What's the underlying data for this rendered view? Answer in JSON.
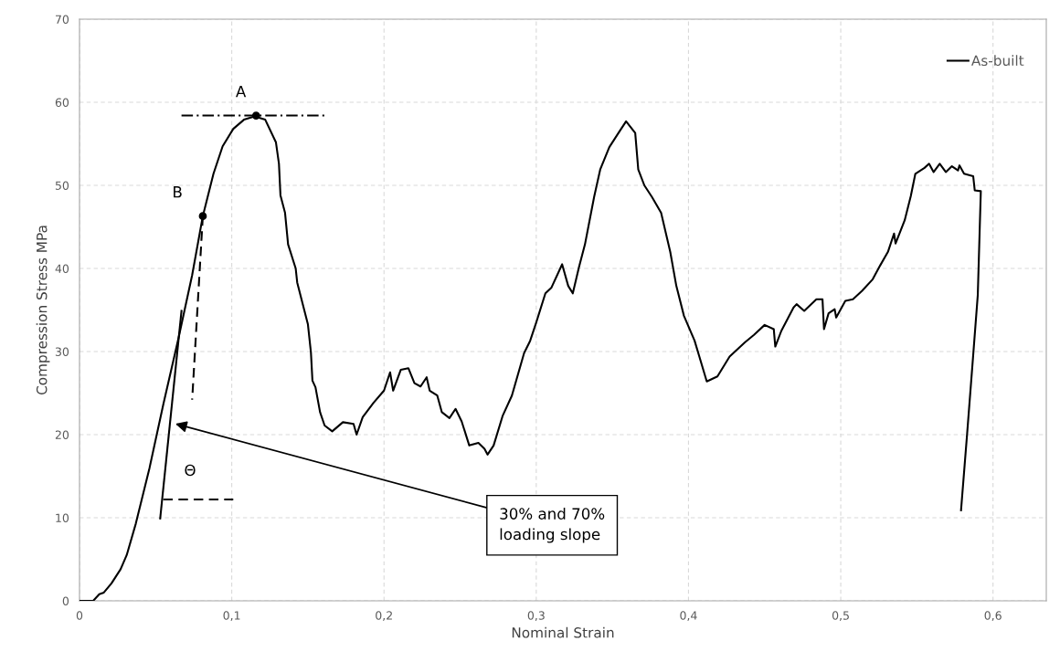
{
  "chart_data": {
    "type": "line",
    "xlabel": "Nominal Strain",
    "ylabel": "Compression Stress MPa",
    "xlim": [
      0,
      0.635
    ],
    "ylim": [
      0,
      70
    ],
    "xticks": [
      0,
      {
        "value": 0.1,
        "label": "0,1"
      },
      {
        "value": 0.2,
        "label": "0,2"
      },
      {
        "value": 0.3,
        "label": "0,3"
      },
      {
        "value": 0.4,
        "label": "0,4"
      },
      {
        "value": 0.5,
        "label": "0,5"
      },
      {
        "value": 0.6,
        "label": "0,6"
      }
    ],
    "yticks": [
      0,
      10,
      20,
      30,
      40,
      50,
      60,
      70
    ],
    "grid": true,
    "legend": "top right",
    "marker": "none",
    "line_style": "solid",
    "series": [
      {
        "name": "As-built",
        "color": "#000000",
        "x": [
          0.0,
          0.009,
          0.013,
          0.016,
          0.021,
          0.027,
          0.031,
          0.037,
          0.046,
          0.055,
          0.065,
          0.074,
          0.081,
          0.088,
          0.094,
          0.101,
          0.108,
          0.115,
          0.122,
          0.129,
          0.131,
          0.132,
          0.135,
          0.137,
          0.142,
          0.143,
          0.15,
          0.152,
          0.153,
          0.155,
          0.158,
          0.161,
          0.166,
          0.173,
          0.18,
          0.182,
          0.186,
          0.193,
          0.2,
          0.204,
          0.206,
          0.211,
          0.216,
          0.22,
          0.224,
          0.228,
          0.23,
          0.235,
          0.238,
          0.243,
          0.247,
          0.251,
          0.256,
          0.262,
          0.266,
          0.268,
          0.272,
          0.278,
          0.284,
          0.292,
          0.296,
          0.3,
          0.306,
          0.31,
          0.317,
          0.321,
          0.324,
          0.328,
          0.332,
          0.338,
          0.342,
          0.348,
          0.354,
          0.359,
          0.365,
          0.367,
          0.371,
          0.376,
          0.382,
          0.388,
          0.392,
          0.397,
          0.404,
          0.412,
          0.419,
          0.427,
          0.437,
          0.443,
          0.45,
          0.456,
          0.457,
          0.461,
          0.469,
          0.471,
          0.476,
          0.484,
          0.488,
          0.489,
          0.492,
          0.496,
          0.497,
          0.503,
          0.508,
          0.514,
          0.521,
          0.526,
          0.531,
          0.535,
          0.536,
          0.542,
          0.546,
          0.549,
          0.555,
          0.558,
          0.561,
          0.565,
          0.569,
          0.573,
          0.577,
          0.578,
          0.581,
          0.587,
          0.588,
          0.592,
          0.59,
          0.587,
          0.583,
          0.579
        ],
        "values": [
          0,
          0,
          0.8,
          1.0,
          2.1,
          3.8,
          5.5,
          9.3,
          16.0,
          23.6,
          31.6,
          39.2,
          46.3,
          51.4,
          54.7,
          56.8,
          57.9,
          58.3,
          57.9,
          55.2,
          52.6,
          48.8,
          46.7,
          42.9,
          40.0,
          38.3,
          33.3,
          29.9,
          26.5,
          25.7,
          22.7,
          21.1,
          20.4,
          21.5,
          21.3,
          20.0,
          22.1,
          23.8,
          25.3,
          27.5,
          25.3,
          27.8,
          28.0,
          26.2,
          25.8,
          26.9,
          25.3,
          24.7,
          22.7,
          22.0,
          23.1,
          21.6,
          18.7,
          19.0,
          18.3,
          17.6,
          18.7,
          22.3,
          24.7,
          29.8,
          31.3,
          33.5,
          37.0,
          37.7,
          40.5,
          37.9,
          37.0,
          40.1,
          42.9,
          48.6,
          51.9,
          54.6,
          56.3,
          57.7,
          56.3,
          51.9,
          50.0,
          48.6,
          46.7,
          42.0,
          37.9,
          34.3,
          31.3,
          26.4,
          27.0,
          29.4,
          31.1,
          32.0,
          33.2,
          32.7,
          30.6,
          32.5,
          35.3,
          35.7,
          34.9,
          36.3,
          36.3,
          32.7,
          34.6,
          35.1,
          34.1,
          36.1,
          36.3,
          37.3,
          38.7,
          40.4,
          42.0,
          44.2,
          43.0,
          45.8,
          48.7,
          51.4,
          52.1,
          52.6,
          51.6,
          52.6,
          51.6,
          52.3,
          51.8,
          52.4,
          51.4,
          51.1,
          49.4,
          49.3,
          36.8,
          29.6,
          20.1,
          10.9
        ]
      },
      {
        "type": "line",
        "color": "#000000",
        "x": [
          0.053,
          0.067
        ],
        "values": [
          9.9,
          34.9
        ]
      },
      {
        "type": "line",
        "color": "#000000",
        "line_style": "dashed",
        "x": [
          0.081,
          0.074
        ],
        "values": [
          46.3,
          24.2
        ]
      },
      {
        "type": "line",
        "color": "#000000",
        "line_style": "dashdot",
        "x": [
          0.067,
          0.163
        ],
        "values": [
          58.4,
          58.4
        ]
      },
      {
        "type": "line",
        "color": "#000000",
        "line_style": "dashed",
        "x": [
          0.055,
          0.101
        ],
        "values": [
          12.2,
          12.2
        ]
      },
      {
        "type": "scatter",
        "color": "#000000",
        "marker": "circle",
        "x": [
          0.116,
          0.081
        ],
        "values": [
          58.4,
          46.3
        ]
      }
    ],
    "annotations": [
      {
        "text": "A",
        "x": 0.116,
        "y": 58.4
      },
      {
        "text": "B",
        "x": 0.081,
        "y": 46.3
      },
      "Θ",
      {
        "text": "30% and 70%\nloading slope",
        "x": 0.063,
        "y": 21.3
      }
    ]
  }
}
